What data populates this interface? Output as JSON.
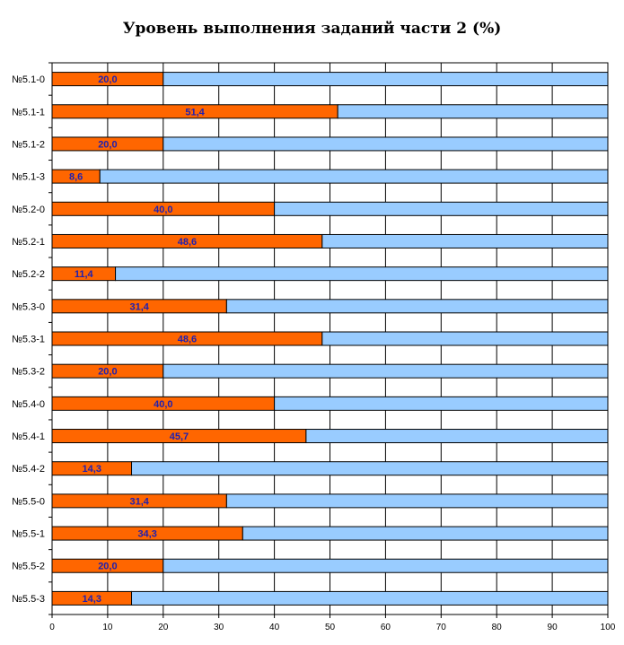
{
  "chart_data": {
    "type": "bar",
    "orientation": "horizontal",
    "stacked": true,
    "title": "Уровень выполнения заданий части 2 (%)",
    "xlim": [
      0,
      100
    ],
    "x_ticks": [
      0,
      10,
      20,
      30,
      40,
      50,
      60,
      70,
      80,
      90,
      100
    ],
    "grid": true,
    "categories": [
      "№5.1-0",
      "№5.1-1",
      "№5.1-2",
      "№5.1-3",
      "№5.2-0",
      "№5.2-1",
      "№5.2-2",
      "№5.3-0",
      "№5.3-1",
      "№5.3-2",
      "№5.4-0",
      "№5.4-1",
      "№5.4-2",
      "№5.5-0",
      "№5.5-1",
      "№5.5-2",
      "№5.5-3"
    ],
    "series": [
      {
        "values": [
          20.0,
          51.4,
          20.0,
          8.6,
          40.0,
          48.6,
          11.4,
          31.4,
          48.6,
          20.0,
          40.0,
          45.7,
          14.3,
          31.4,
          34.3,
          20.0,
          14.3
        ],
        "data_labels": [
          "20,0",
          "51,4",
          "20,0",
          "8,6",
          "40,0",
          "48,6",
          "11,4",
          "31,4",
          "48,6",
          "20,0",
          "40,0",
          "45,7",
          "14,3",
          "31,4",
          "34,3",
          "20,0",
          "14,3"
        ],
        "color": "#ff6600"
      },
      {
        "values": [
          80.0,
          48.6,
          80.0,
          91.4,
          60.0,
          51.4,
          88.6,
          68.6,
          51.4,
          80.0,
          60.0,
          54.3,
          85.7,
          68.6,
          65.7,
          80.0,
          85.7
        ],
        "color": "#99ccff"
      }
    ]
  }
}
